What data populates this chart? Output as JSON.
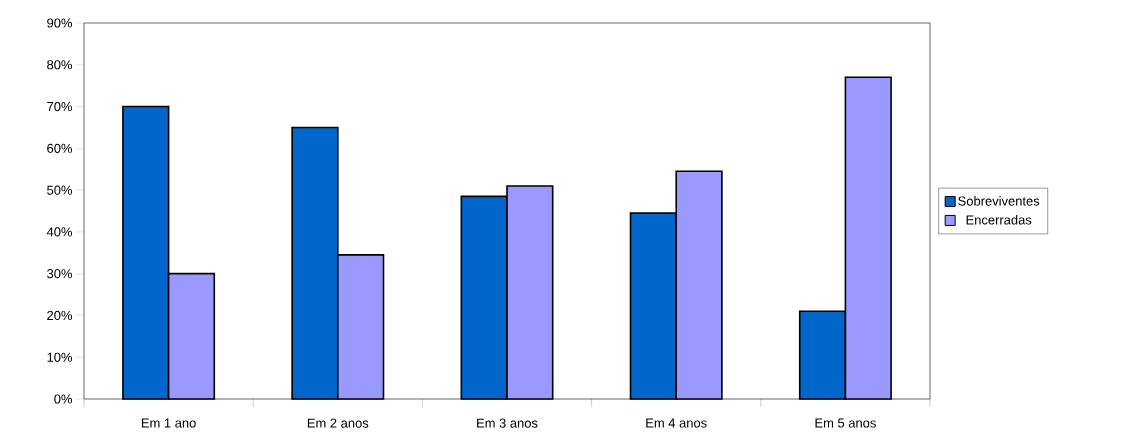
{
  "chart_data": {
    "type": "bar",
    "categories": [
      "Em 1 ano",
      "Em 2 anos",
      "Em 3 anos",
      "Em 4 anos",
      "Em 5 anos"
    ],
    "series": [
      {
        "name": "Sobreviventes",
        "color": "#0066cc",
        "values": [
          70,
          65,
          48.5,
          44.5,
          21
        ]
      },
      {
        "name": "Encerradas",
        "color": "#9999ff",
        "values": [
          30,
          34.5,
          51,
          54.5,
          77
        ]
      }
    ],
    "ylim": [
      0,
      90
    ],
    "yticks": [
      {
        "value": 0,
        "label": "0%"
      },
      {
        "value": 10,
        "label": "10%"
      },
      {
        "value": 20,
        "label": "20%"
      },
      {
        "value": 30,
        "label": "30%"
      },
      {
        "value": 40,
        "label": "40%"
      },
      {
        "value": 50,
        "label": "50%"
      },
      {
        "value": 60,
        "label": "60%"
      },
      {
        "value": 70,
        "label": "70%"
      },
      {
        "value": 80,
        "label": "80%"
      },
      {
        "value": 90,
        "label": "90%"
      }
    ],
    "legend": "right"
  }
}
